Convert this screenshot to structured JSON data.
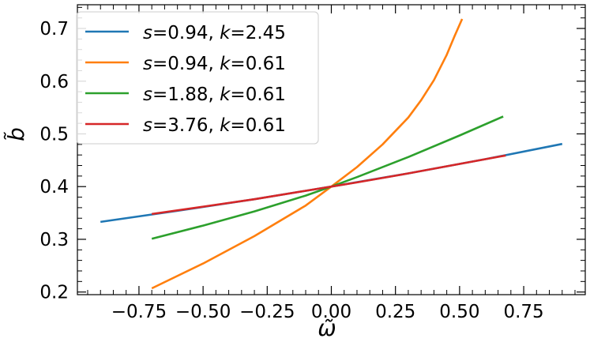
{
  "chart_data": {
    "type": "line",
    "xlabel": "ω̃",
    "ylabel": "b̃",
    "xlim": [
      -0.99,
      0.99
    ],
    "ylim": [
      0.195,
      0.745
    ],
    "xticks": [
      -0.75,
      -0.5,
      -0.25,
      0.0,
      0.25,
      0.5,
      0.75
    ],
    "xtick_labels": [
      "−0.75",
      "−0.50",
      "−0.25",
      "0.00",
      "0.25",
      "0.50",
      "0.75"
    ],
    "yticks": [
      0.2,
      0.3,
      0.4,
      0.5,
      0.6,
      0.7
    ],
    "ytick_labels": [
      "0.2",
      "0.3",
      "0.4",
      "0.5",
      "0.6",
      "0.7"
    ],
    "minor_ticks": true,
    "grid": false,
    "legend_position": "top-left",
    "series": [
      {
        "name": "s=0.94, k=2.45",
        "s": "0.94",
        "k": "2.45",
        "color": "#1f77b4",
        "x": [
          -0.9,
          -0.6,
          -0.3,
          0.0,
          0.3,
          0.6,
          0.9
        ],
        "y": [
          0.333,
          0.354,
          0.376,
          0.4,
          0.425,
          0.452,
          0.481
        ]
      },
      {
        "name": "s=0.94, k=0.61",
        "s": "0.94",
        "k": "0.61",
        "color": "#ff7f0e",
        "x": [
          -0.7,
          -0.5,
          -0.3,
          -0.1,
          0.0,
          0.1,
          0.2,
          0.3,
          0.35,
          0.4,
          0.45,
          0.48,
          0.51
        ],
        "y": [
          0.207,
          0.254,
          0.306,
          0.364,
          0.4,
          0.437,
          0.48,
          0.531,
          0.564,
          0.602,
          0.65,
          0.685,
          0.718
        ]
      },
      {
        "name": "s=1.88, k=0.61",
        "s": "1.88",
        "k": "0.61",
        "color": "#2ca02c",
        "x": [
          -0.7,
          -0.5,
          -0.3,
          -0.1,
          0.0,
          0.1,
          0.3,
          0.5,
          0.67
        ],
        "y": [
          0.301,
          0.326,
          0.353,
          0.383,
          0.4,
          0.418,
          0.456,
          0.497,
          0.533
        ]
      },
      {
        "name": "s=3.76, k=0.61",
        "s": "3.76",
        "k": "0.61",
        "color": "#d62728",
        "x": [
          -0.7,
          -0.5,
          -0.3,
          -0.1,
          0.0,
          0.1,
          0.3,
          0.5,
          0.68
        ],
        "y": [
          0.348,
          0.362,
          0.376,
          0.392,
          0.4,
          0.408,
          0.425,
          0.443,
          0.459
        ]
      }
    ]
  }
}
